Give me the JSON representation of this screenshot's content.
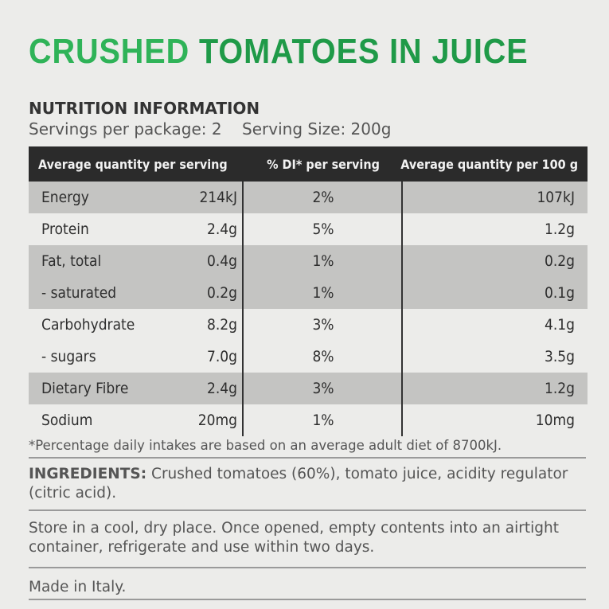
{
  "header": {
    "title_light": "CRUSHED",
    "title_bold": "TOMATOES IN JUICE",
    "heading": "NUTRITION INFORMATION",
    "servings": "Servings per package: 2",
    "serving_size": "Serving Size: 200g"
  },
  "table": {
    "columns": [
      "Average quantity per serving",
      "% DI* per serving",
      "Average quantity per 100 g"
    ],
    "rows": [
      [
        "Energy",
        "214kJ",
        "2%",
        "107kJ"
      ],
      [
        "Protein",
        "2.4g",
        "5%",
        "1.2g"
      ],
      [
        "Fat, total",
        "0.4g",
        "1%",
        "0.2g"
      ],
      [
        "- saturated",
        "0.2g",
        "1%",
        "0.1g"
      ],
      [
        "Carbohydrate",
        "8.2g",
        "3%",
        "4.1g"
      ],
      [
        "- sugars",
        "7.0g",
        "8%",
        "3.5g"
      ],
      [
        "Dietary Fibre",
        "2.4g",
        "3%",
        "1.2g"
      ],
      [
        "Sodium",
        "20mg",
        "1%",
        "10mg"
      ]
    ]
  },
  "footnote": "*Percentage daily intakes are based on an average adult diet of 8700kJ.",
  "ingredients": {
    "label": "INGREDIENTS:",
    "text": "Crushed tomatoes (60%), tomato juice, acidity regulator (citric acid)."
  },
  "storage": "Store in a cool, dry place. Once opened, empty contents into an airtight container, refrigerate and use within two days.",
  "origin": "Made in Italy."
}
